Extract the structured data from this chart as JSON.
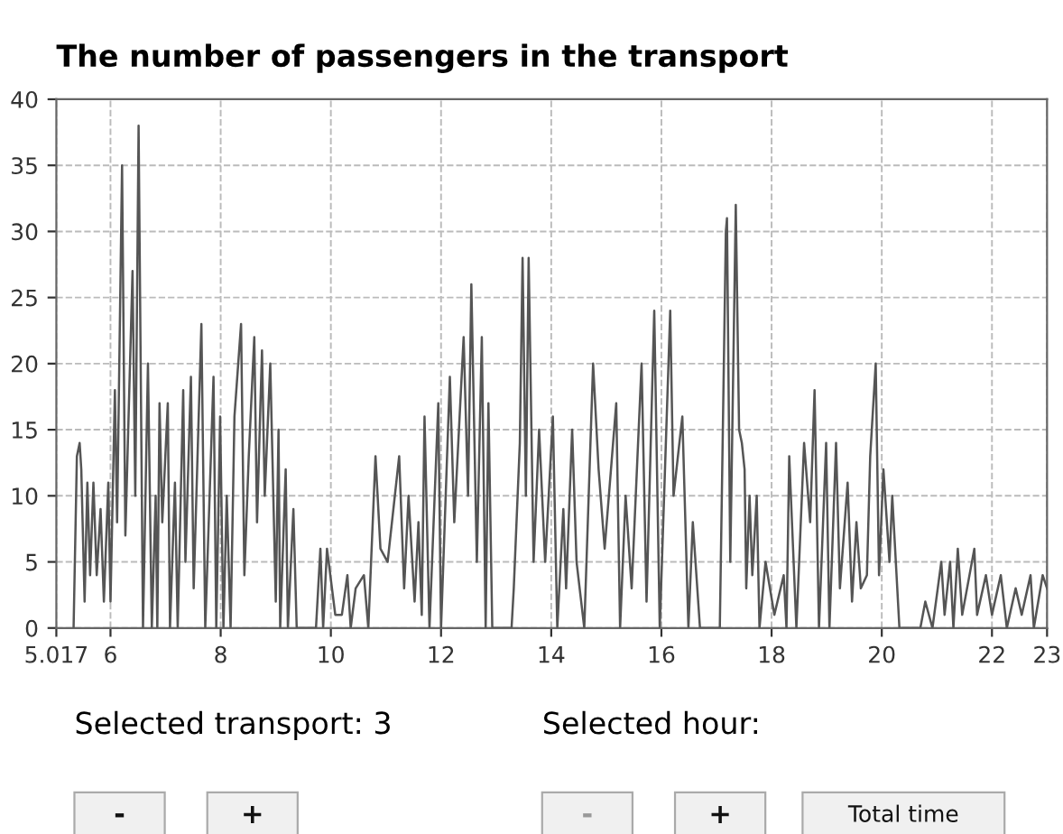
{
  "chart_data": {
    "type": "line",
    "title": "The number of passengers in the transport",
    "x": [
      5.33,
      5.39,
      5.44,
      5.47,
      5.53,
      5.58,
      5.63,
      5.69,
      5.75,
      5.82,
      5.88,
      5.96,
      6.0,
      6.08,
      6.12,
      6.21,
      6.27,
      6.4,
      6.45,
      6.51,
      6.59,
      6.68,
      6.75,
      6.82,
      6.85,
      6.89,
      6.94,
      7.04,
      7.08,
      7.17,
      7.22,
      7.32,
      7.36,
      7.46,
      7.51,
      7.65,
      7.72,
      7.87,
      7.92,
      7.99,
      8.05,
      8.11,
      8.18,
      8.25,
      8.37,
      8.43,
      8.51,
      8.61,
      8.66,
      8.75,
      8.8,
      8.9,
      9.0,
      9.05,
      9.08,
      9.18,
      9.22,
      9.32,
      9.38,
      9.73,
      9.81,
      9.86,
      9.93,
      10.08,
      10.2,
      10.3,
      10.36,
      10.45,
      10.6,
      10.68,
      10.81,
      10.9,
      11.03,
      11.24,
      11.33,
      11.41,
      11.52,
      11.59,
      11.65,
      11.7,
      11.79,
      11.95,
      12.0,
      12.16,
      12.24,
      12.41,
      12.49,
      12.55,
      12.65,
      12.74,
      12.81,
      12.86,
      12.93,
      13.28,
      13.32,
      13.43,
      13.48,
      13.54,
      13.59,
      13.68,
      13.78,
      13.89,
      14.03,
      14.11,
      14.22,
      14.27,
      14.38,
      14.46,
      14.6,
      14.76,
      14.86,
      14.97,
      15.18,
      15.25,
      15.35,
      15.46,
      15.64,
      15.73,
      15.87,
      15.97,
      16.16,
      16.22,
      16.38,
      16.49,
      16.57,
      16.7,
      17.06,
      17.17,
      17.19,
      17.25,
      17.35,
      17.41,
      17.46,
      17.51,
      17.54,
      17.6,
      17.65,
      17.73,
      17.78,
      17.89,
      18.05,
      18.22,
      18.27,
      18.32,
      18.45,
      18.59,
      18.7,
      18.78,
      18.86,
      18.99,
      19.05,
      19.17,
      19.24,
      19.38,
      19.46,
      19.54,
      19.62,
      19.73,
      19.79,
      19.89,
      19.95,
      20.03,
      20.14,
      20.19,
      20.32,
      20.7,
      20.79,
      20.92,
      21.08,
      21.14,
      21.24,
      21.3,
      21.38,
      21.46,
      21.68,
      21.73,
      21.89,
      22.0,
      22.16,
      22.27,
      22.43,
      22.54,
      22.7,
      22.76,
      22.92,
      23.0
    ],
    "values": [
      0,
      13,
      14,
      12,
      2,
      11,
      4,
      11,
      4,
      9,
      2,
      11,
      2,
      18,
      8,
      35,
      7,
      27,
      10,
      38,
      0,
      20,
      0,
      10,
      0,
      17,
      8,
      17,
      0,
      11,
      0,
      18,
      5,
      19,
      3,
      23,
      0,
      19,
      0,
      16,
      0,
      10,
      0,
      16,
      23,
      4,
      13,
      22,
      8,
      21,
      10,
      20,
      2,
      15,
      0,
      12,
      0,
      9,
      0,
      0,
      6,
      0,
      6,
      1,
      1,
      4,
      0,
      3,
      4,
      0,
      13,
      6,
      5,
      13,
      3,
      10,
      2,
      8,
      1,
      16,
      0,
      17,
      0,
      19,
      8,
      22,
      10,
      26,
      5,
      22,
      0,
      17,
      0,
      0,
      3,
      14,
      28,
      10,
      28,
      5,
      15,
      5,
      16,
      0,
      9,
      3,
      15,
      5,
      0,
      20,
      12,
      6,
      17,
      0,
      10,
      3,
      20,
      2,
      24,
      0,
      24,
      10,
      16,
      0,
      8,
      0,
      0,
      30,
      31,
      5,
      32,
      15,
      14,
      12,
      3,
      10,
      4,
      10,
      0,
      5,
      1,
      4,
      0,
      13,
      0,
      14,
      8,
      18,
      0,
      14,
      0,
      14,
      3,
      11,
      2,
      8,
      3,
      4,
      13,
      20,
      4,
      12,
      5,
      10,
      0,
      0,
      2,
      0,
      5,
      1,
      5,
      0,
      6,
      1,
      6,
      1,
      4,
      1,
      4,
      0,
      3,
      1,
      4,
      0,
      4,
      3
    ],
    "color": "#555555",
    "line_style": "solid",
    "marker": "none",
    "xlim": [
      5.017,
      23
    ],
    "xticks": [
      5.017,
      6,
      8,
      10,
      12,
      14,
      16,
      18,
      20,
      22,
      23
    ],
    "ylim": [
      0,
      40
    ],
    "yticks": [
      0,
      5,
      10,
      15,
      20,
      25,
      30,
      35,
      40
    ],
    "grid": true,
    "legend": false,
    "annotations": [
      "Selected transport: 3",
      "Selected hour:",
      "-",
      "+",
      "-",
      "+",
      "Total time"
    ]
  }
}
